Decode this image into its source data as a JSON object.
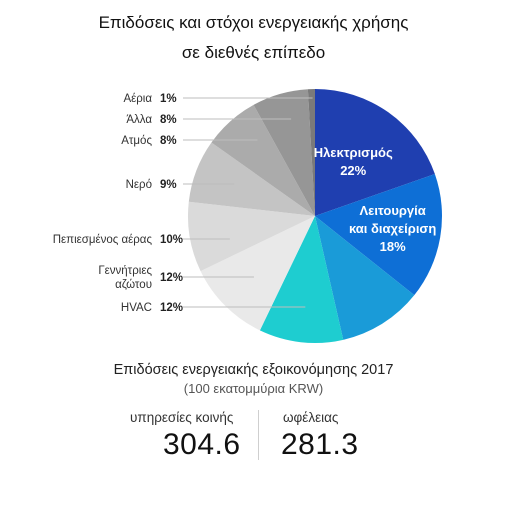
{
  "title_line1": "Επιδόσεις και στόχοι ενεργειακής χρήσης",
  "title_line2": "σε διεθνές επίπεδο",
  "chart_data": {
    "type": "pie",
    "slices": [
      {
        "name": "Ηλεκτρισμός",
        "value": 22,
        "pct": "22%",
        "color": "#1f3fb0",
        "label_mode": "inside"
      },
      {
        "name": "Λειτουργία και διαχείριση",
        "name_lines": [
          "Λειτουργία",
          "και διαχείριση"
        ],
        "value": 18,
        "pct": "18%",
        "color": "#0e6fd6",
        "label_mode": "inside"
      },
      {
        "name": "",
        "value": 12,
        "pct": "",
        "color": "#1a9bd8",
        "label_mode": "none"
      },
      {
        "name": "HVAC",
        "value": 12,
        "pct": "12%",
        "color": "#1ecdd0",
        "label_mode": "outside"
      },
      {
        "name": "Γεννήτριες αζώτου",
        "name_lines": [
          "Γεννήτριες",
          "αζώτου"
        ],
        "value": 12,
        "pct": "12%",
        "color": "#e9e9e9",
        "label_mode": "outside"
      },
      {
        "name": "Πεπιεσμένος αέρας",
        "value": 10,
        "pct": "10%",
        "color": "#dadada",
        "label_mode": "outside"
      },
      {
        "name": "Νερό",
        "value": 9,
        "pct": "9%",
        "color": "#c4c4c4",
        "label_mode": "outside"
      },
      {
        "name": "Ατμός",
        "value": 8,
        "pct": "8%",
        "color": "#ababab",
        "label_mode": "outside"
      },
      {
        "name": "Άλλα",
        "value": 8,
        "pct": "8%",
        "color": "#969696",
        "label_mode": "outside"
      },
      {
        "name": "Αέρια",
        "value": 1,
        "pct": "1%",
        "color": "#7a7a7a",
        "label_mode": "outside"
      }
    ]
  },
  "stats": {
    "title": "Επιδόσεις ενεργειακής εξοικονόμησης 2017",
    "subtitle": "(100 εκατομμύρια KRW)",
    "left_label": "υπηρεσίες κοινής",
    "left_value": "304.6",
    "right_label": "ωφέλειας",
    "right_value": "281.3"
  }
}
